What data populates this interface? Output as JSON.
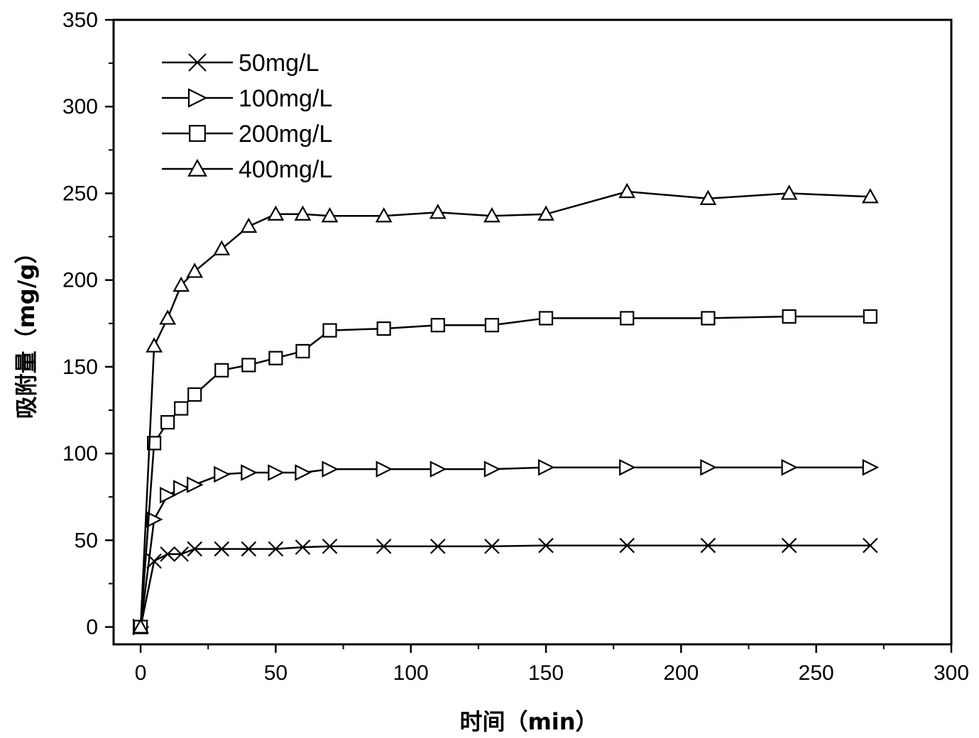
{
  "chart_data": {
    "type": "line",
    "title": "",
    "xlabel": "时间（min）",
    "ylabel": "吸附量（mg/g）",
    "xlim": [
      -10,
      300
    ],
    "ylim": [
      -10,
      350
    ],
    "xticks": [
      0,
      50,
      100,
      150,
      200,
      250,
      300
    ],
    "yticks": [
      0,
      50,
      100,
      150,
      200,
      250,
      300,
      350
    ],
    "grid": false,
    "legend_position": "top-left",
    "series": [
      {
        "name": "50mg/L",
        "marker": "x-cross",
        "x": [
          0,
          5,
          10,
          15,
          20,
          30,
          40,
          50,
          60,
          70,
          90,
          110,
          130,
          150,
          180,
          210,
          240,
          270
        ],
        "y": [
          0,
          38,
          42,
          42,
          45,
          45,
          45,
          45,
          46,
          46.5,
          46.5,
          46.5,
          46.5,
          47,
          47,
          47,
          47,
          47
        ]
      },
      {
        "name": "100mg/L",
        "marker": "triangle-right",
        "x": [
          0,
          5,
          10,
          15,
          20,
          30,
          40,
          50,
          60,
          70,
          90,
          110,
          130,
          150,
          180,
          210,
          240,
          270
        ],
        "y": [
          0,
          62,
          76,
          80,
          82,
          88,
          89,
          89,
          89,
          91,
          91,
          91,
          91,
          92,
          92,
          92,
          92,
          92
        ]
      },
      {
        "name": "200mg/L",
        "marker": "square",
        "x": [
          0,
          5,
          10,
          15,
          20,
          30,
          40,
          50,
          60,
          70,
          90,
          110,
          130,
          150,
          180,
          210,
          240,
          270
        ],
        "y": [
          0,
          106,
          118,
          126,
          134,
          148,
          151,
          155,
          159,
          171,
          172,
          174,
          174,
          178,
          178,
          178,
          179,
          179
        ]
      },
      {
        "name": "400mg/L",
        "marker": "triangle-up",
        "x": [
          0,
          5,
          10,
          15,
          20,
          30,
          40,
          50,
          60,
          70,
          90,
          110,
          130,
          150,
          180,
          210,
          240,
          270
        ],
        "y": [
          0,
          162,
          178,
          197,
          205,
          218,
          231,
          238,
          238,
          237,
          237,
          239,
          237,
          238,
          251,
          247,
          250,
          248
        ]
      }
    ]
  }
}
